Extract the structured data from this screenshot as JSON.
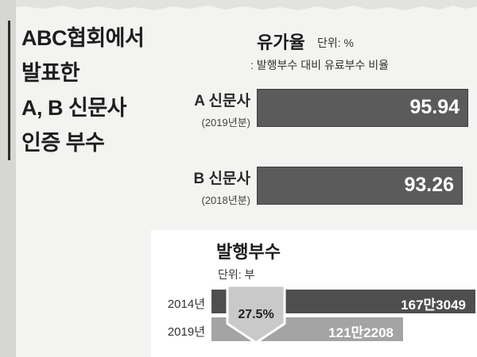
{
  "headline": [
    "ABC협회에서",
    "발표한",
    "A, B 신문사",
    "인증 부수"
  ],
  "colors": {
    "paid_bar": "#5b5b5b",
    "circ_2014": "#4e4e4e",
    "circ_2019": "#a4a4a4",
    "drop_arrow": "#c9c9c9"
  },
  "chart_data": [
    {
      "type": "bar",
      "title": "유가율",
      "unit": "단위: %",
      "subtitle": ": 발행부수 대비 유료부수 비율",
      "categories": [
        "A 신문사",
        "B 신문사"
      ],
      "category_notes": [
        "(2019년분)",
        "(2018년분)"
      ],
      "values": [
        95.94,
        93.26
      ],
      "value_labels": [
        "95.94",
        "93.26"
      ]
    },
    {
      "type": "bar",
      "title": "발행부수",
      "unit": "단위: 부",
      "categories": [
        "2014년",
        "2019년"
      ],
      "values": [
        1673049,
        1212208
      ],
      "value_labels": [
        "167만3049",
        "121만2208"
      ],
      "annotation": "27.5%"
    }
  ]
}
